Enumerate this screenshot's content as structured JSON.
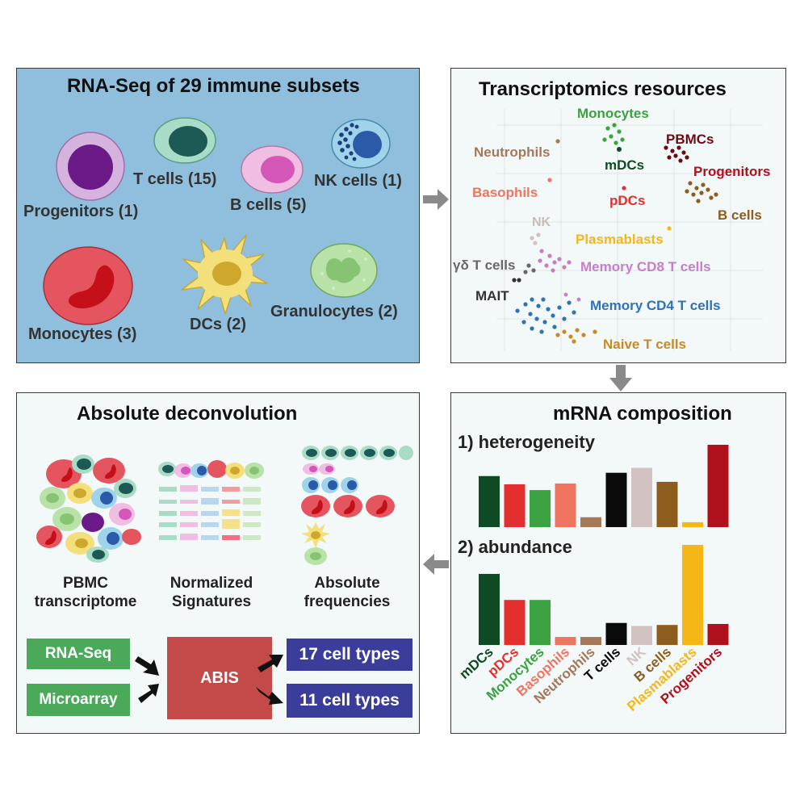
{
  "colors": {
    "mDCs": "#0e4a24",
    "pDCs": "#e3302f",
    "Monocytes": "#3aa23e",
    "Basophils": "#f07560",
    "Neutrophils": "#a6785a",
    "T cells": "#0a0a0a",
    "NK": "#d2c3c2",
    "B cells": "#8e5d1e",
    "Plasmablasts": "#f6b618",
    "Progenitors": "#b00f1c",
    "PBMCs": "#6e0a14",
    "Memory CD8 T cells": "#c77ec8",
    "Memory CD4 T cells": "#2f72b6",
    "Naive T cells": "#c98a24",
    "γδ T cells": "#686868",
    "MAIT": "#333333"
  },
  "panel1": {
    "title": "RNA-Seq of 29 immune subsets",
    "cells": {
      "progenitors": "Progenitors (1)",
      "tcells": "T cells (15)",
      "bcells": "B cells (5)",
      "nkcells": "NK cells (1)",
      "monocytes": "Monocytes (3)",
      "dcs": "DCs (2)",
      "granulocytes": "Granulocytes (2)"
    }
  },
  "panel2": {
    "title": "Transcriptomics resources",
    "labels": {
      "monocytes": "Monocytes",
      "neutrophils": "Neutrophils",
      "mdcs": "mDCs",
      "pbmcs": "PBMCs",
      "progenitors": "Progenitors",
      "basophils": "Basophils",
      "pdcs": "pDCs",
      "bcells": "B cells",
      "nk": "NK",
      "plasmablasts": "Plasmablasts",
      "gdt": "γδ T cells",
      "memcd8": "Memory CD8 T cells",
      "mait": "MAIT",
      "memcd4": "Memory CD4 T cells",
      "naive": "Naive T cells"
    }
  },
  "panel3": {
    "title": "Absolute deconvolution",
    "col1": [
      "PBMC",
      "transcriptome"
    ],
    "col2": [
      "Normalized",
      "Signatures"
    ],
    "col3": [
      "Absolute",
      "frequencies"
    ],
    "inputs": [
      "RNA-Seq",
      "Microarray"
    ],
    "method": "ABIS",
    "outputs": [
      "17 cell types",
      "11 cell types"
    ]
  },
  "chart_data": {
    "type": "bar",
    "title": "mRNA composition",
    "categories": [
      "mDCs",
      "pDCs",
      "Monocytes",
      "Basophils",
      "Neutrophils",
      "T cells",
      "NK",
      "B cells",
      "Plasmablasts",
      "Progenitors"
    ],
    "series": [
      {
        "name": "1) heterogeneity",
        "values": [
          62,
          52,
          45,
          53,
          12,
          66,
          72,
          55,
          6,
          100
        ]
      },
      {
        "name": "2) abundance",
        "values": [
          71,
          45,
          45,
          8,
          8,
          22,
          19,
          20,
          100,
          21
        ]
      }
    ],
    "xlabel": "",
    "ylabel": ""
  }
}
